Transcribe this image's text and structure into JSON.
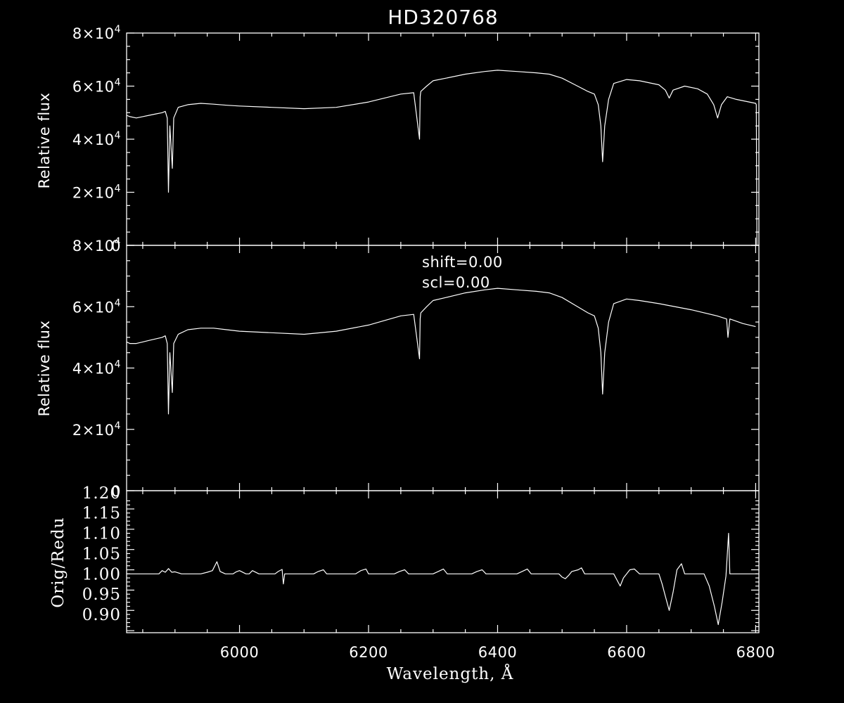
{
  "chart_data": [
    {
      "type": "line",
      "title": "HD320768",
      "ylabel": "Relative flux",
      "xlim": [
        5825,
        6805
      ],
      "ylim": [
        0,
        80000
      ],
      "ytick_labels": [
        {
          "value": 0,
          "mantissa": "0",
          "exponent": ""
        },
        {
          "value": 20000,
          "mantissa": "2×10",
          "exponent": "4"
        },
        {
          "value": 40000,
          "mantissa": "4×10",
          "exponent": "4"
        },
        {
          "value": 60000,
          "mantissa": "6×10",
          "exponent": "4"
        },
        {
          "value": 80000,
          "mantissa": "8×10",
          "exponent": "4"
        }
      ],
      "series": [
        {
          "x": [
            5825,
            5830,
            5840,
            5850,
            5860,
            5870,
            5880,
            5885,
            5888,
            5889.9,
            5892,
            5895.9,
            5898,
            5905,
            5920,
            5940,
            5960,
            5980,
            6000,
            6050,
            6100,
            6150,
            6200,
            6250,
            6270,
            6279,
            6280,
            6281,
            6290,
            6300,
            6320,
            6350,
            6380,
            6400,
            6430,
            6460,
            6480,
            6500,
            6520,
            6540,
            6550,
            6556,
            6560,
            6562.8,
            6566,
            6572,
            6580,
            6600,
            6620,
            6650,
            6660,
            6666,
            6672,
            6690,
            6710,
            6725,
            6735,
            6741,
            6747,
            6756,
            6770,
            6800,
            6801,
            6802
          ],
          "y": [
            49000,
            48500,
            48000,
            48500,
            49000,
            49500,
            50000,
            50500,
            48000,
            20000,
            45000,
            29000,
            48000,
            52000,
            53000,
            53500,
            53200,
            52800,
            52500,
            52000,
            51500,
            52000,
            54000,
            57000,
            57500,
            40000,
            56000,
            58000,
            60000,
            62000,
            63000,
            64500,
            65500,
            66000,
            65500,
            65000,
            64500,
            63000,
            60500,
            58000,
            57000,
            53000,
            45000,
            31500,
            45000,
            55000,
            61000,
            62500,
            62000,
            60500,
            58500,
            55500,
            58500,
            60000,
            59000,
            57000,
            53000,
            48000,
            53000,
            56000,
            55000,
            53500,
            53000,
            0
          ]
        }
      ]
    },
    {
      "type": "line",
      "ylabel": "Relative flux",
      "xlim": [
        5825,
        6805
      ],
      "ylim": [
        0,
        80000
      ],
      "annotations": [
        "shift=0.00",
        "scl=0.00"
      ],
      "ytick_labels": [
        {
          "value": 0,
          "mantissa": "0",
          "exponent": ""
        },
        {
          "value": 20000,
          "mantissa": "2×10",
          "exponent": "4"
        },
        {
          "value": 40000,
          "mantissa": "4×10",
          "exponent": "4"
        },
        {
          "value": 60000,
          "mantissa": "6×10",
          "exponent": "4"
        },
        {
          "value": 80000,
          "mantissa": "8×10",
          "exponent": "4"
        }
      ],
      "series": [
        {
          "x": [
            5825,
            5830,
            5840,
            5850,
            5860,
            5870,
            5880,
            5885,
            5888,
            5889.9,
            5892,
            5895.9,
            5898,
            5905,
            5920,
            5940,
            5960,
            5980,
            6000,
            6050,
            6100,
            6150,
            6200,
            6250,
            6270,
            6279,
            6280,
            6281,
            6290,
            6300,
            6320,
            6350,
            6380,
            6400,
            6430,
            6460,
            6480,
            6500,
            6520,
            6540,
            6550,
            6556,
            6560,
            6562.8,
            6566,
            6572,
            6580,
            6600,
            6620,
            6650,
            6700,
            6740,
            6755,
            6757,
            6760,
            6780,
            6800
          ],
          "y": [
            48500,
            48000,
            48000,
            48500,
            49000,
            49500,
            50000,
            50500,
            48000,
            25000,
            45000,
            32000,
            48000,
            51000,
            52500,
            53000,
            53000,
            52500,
            52000,
            51500,
            51000,
            52000,
            54000,
            57000,
            57500,
            43000,
            56000,
            58000,
            60000,
            62000,
            63000,
            64500,
            65500,
            66000,
            65500,
            65000,
            64500,
            63000,
            60500,
            58000,
            57000,
            53000,
            45000,
            31500,
            45000,
            55000,
            61000,
            62500,
            62000,
            61000,
            59000,
            57000,
            56000,
            50000,
            56000,
            54500,
            53500
          ]
        }
      ]
    },
    {
      "type": "line",
      "xlabel": "Wavelength, Å",
      "ylabel": "Orig/Redu",
      "xlim": [
        5825,
        6805
      ],
      "ylim": [
        0.855,
        1.205
      ],
      "xticks": [
        "6000",
        "6200",
        "6400",
        "6600",
        "6800"
      ],
      "yticks": [
        "0.90",
        "0.95",
        "1.00",
        "1.05",
        "1.10",
        "1.15",
        "1.20"
      ],
      "series": [
        {
          "x": [
            5825,
            5875,
            5880,
            5885,
            5890,
            5895,
            5900,
            5910,
            5940,
            5950,
            5958,
            5965,
            5970,
            5978,
            5990,
            5995,
            6000,
            6010,
            6015,
            6020,
            6030,
            6055,
            6060,
            6066,
            6068,
            6070,
            6072,
            6080,
            6115,
            6122,
            6130,
            6135,
            6145,
            6180,
            6188,
            6196,
            6200,
            6210,
            6240,
            6248,
            6256,
            6262,
            6272,
            6300,
            6308,
            6316,
            6322,
            6332,
            6360,
            6368,
            6376,
            6382,
            6392,
            6430,
            6438,
            6446,
            6452,
            6462,
            6495,
            6500,
            6505,
            6510,
            6515,
            6525,
            6530,
            6535,
            6542,
            6560,
            6580,
            6585,
            6590,
            6595,
            6605,
            6612,
            6620,
            6650,
            6655,
            6660,
            6666,
            6672,
            6678,
            6685,
            6690,
            6720,
            6728,
            6736,
            6742,
            6748,
            6754,
            6758,
            6760,
            6770,
            6803
          ],
          "y": [
            1.0,
            1.0,
            1.008,
            1.004,
            1.013,
            1.004,
            1.005,
            1.0,
            1.0,
            1.004,
            1.008,
            1.03,
            1.006,
            1.0,
            1.0,
            1.005,
            1.008,
            1.0,
            1.0,
            1.008,
            1.0,
            1.0,
            1.006,
            1.011,
            0.975,
            1.0,
            1.0,
            1.0,
            1.0,
            1.006,
            1.01,
            1.0,
            1.0,
            1.0,
            1.008,
            1.012,
            1.0,
            1.0,
            1.0,
            1.006,
            1.01,
            1.0,
            1.0,
            1.0,
            1.006,
            1.012,
            1.0,
            1.0,
            1.0,
            1.006,
            1.01,
            1.0,
            1.0,
            1.0,
            1.006,
            1.012,
            1.0,
            1.0,
            1.0,
            0.992,
            0.988,
            0.996,
            1.006,
            1.01,
            1.015,
            1.0,
            1.0,
            1.0,
            1.0,
            0.985,
            0.97,
            0.99,
            1.01,
            1.012,
            1.0,
            1.0,
            0.975,
            0.945,
            0.91,
            0.955,
            1.01,
            1.025,
            1.0,
            1.0,
            0.97,
            0.92,
            0.875,
            0.93,
            0.995,
            1.1,
            1.0,
            1.0,
            1.0
          ]
        }
      ]
    }
  ]
}
